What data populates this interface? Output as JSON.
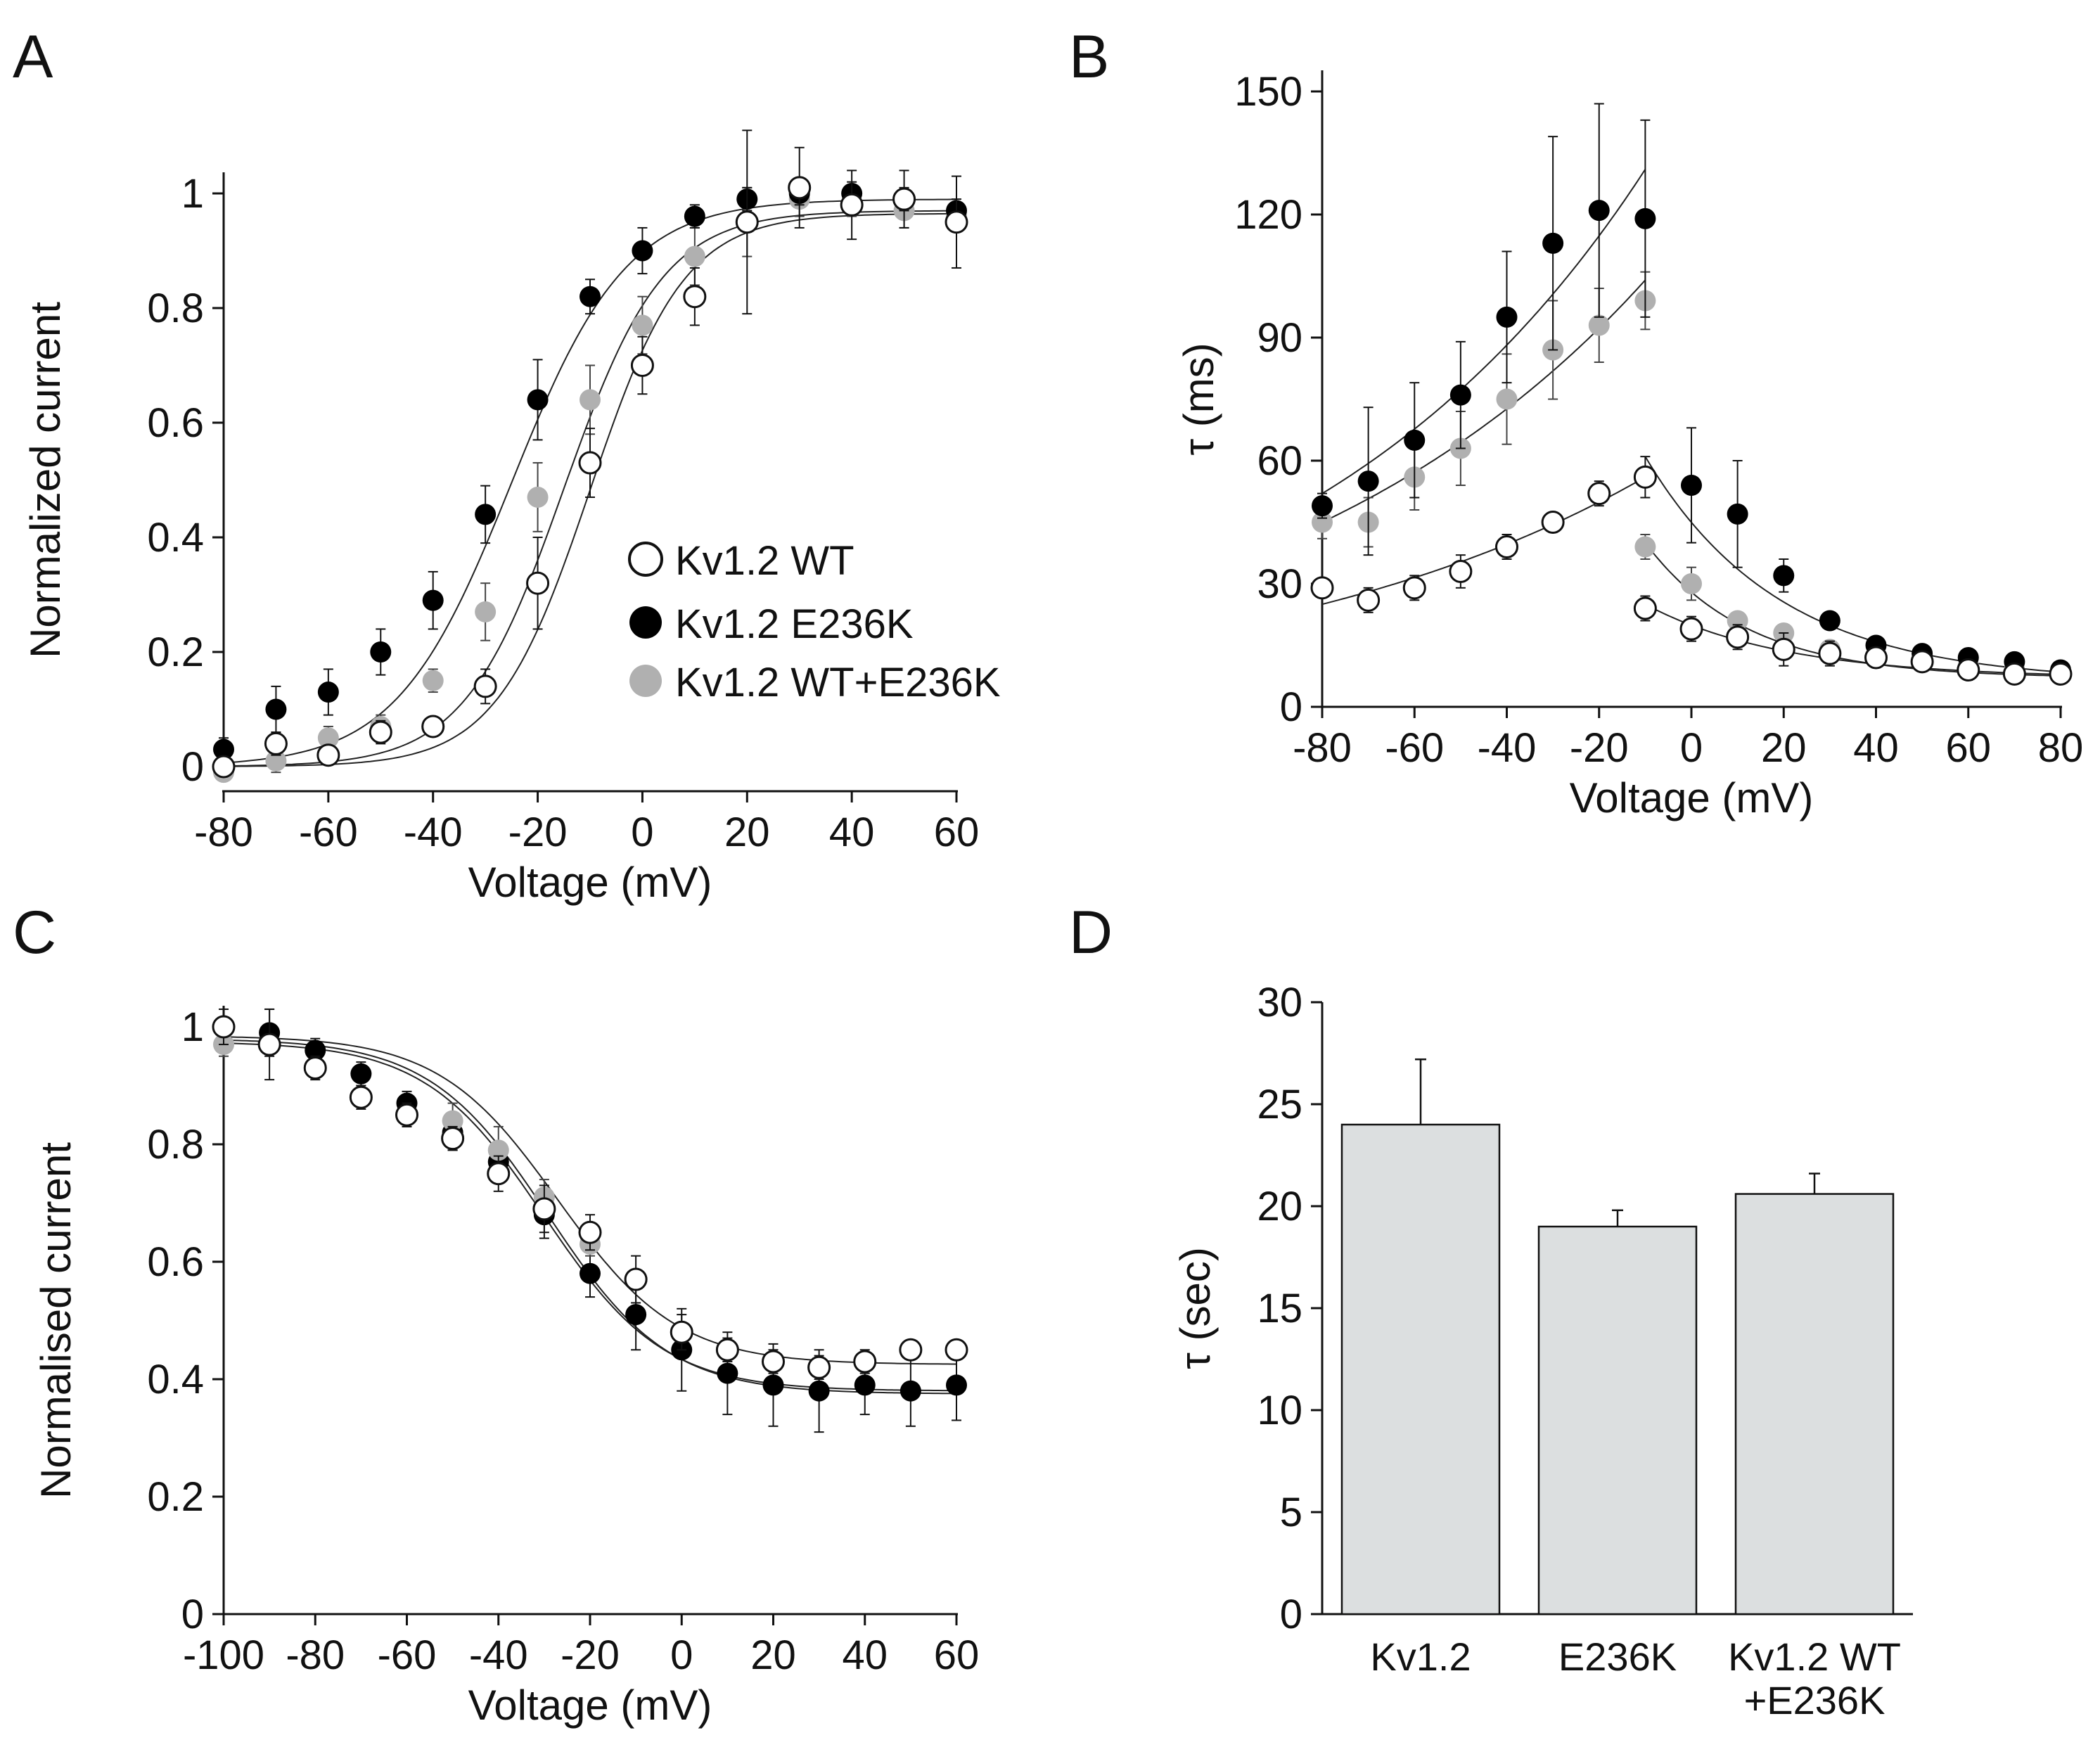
{
  "figure": {
    "panel_letters": [
      "A",
      "B",
      "C",
      "D"
    ]
  },
  "chart_data": [
    {
      "panel": "A",
      "type": "scatter",
      "xlabel": "Voltage (mV)",
      "ylabel": "Normalized current",
      "xlim": [
        -80,
        60
      ],
      "ylim": [
        0,
        1
      ],
      "xticks": [
        -80,
        -60,
        -40,
        -20,
        0,
        20,
        40,
        60
      ],
      "yticks": [
        0,
        0.2,
        0.4,
        0.6,
        0.8,
        1
      ],
      "ytick_labels": [
        "0",
        "0.2",
        "0.4",
        "0.6",
        "0.8",
        "1"
      ],
      "legend": [
        "Kv1.2 WT",
        "Kv1.2 E236K",
        "Kv1.2 WT+E236K"
      ],
      "legend_position": "middle-right",
      "series": [
        {
          "name": "Kv1.2 WT",
          "style": "open",
          "color": "#ffffff",
          "x": [
            -80,
            -70,
            -60,
            -50,
            -40,
            -30,
            -20,
            -10,
            0,
            10,
            20,
            30,
            40,
            50,
            60
          ],
          "values": [
            0.0,
            0.04,
            0.02,
            0.06,
            0.07,
            0.14,
            0.32,
            0.53,
            0.7,
            0.82,
            0.95,
            1.01,
            0.98,
            0.99,
            0.95
          ],
          "errors": [
            0.01,
            0.02,
            0.01,
            0.02,
            0.01,
            0.03,
            0.08,
            0.06,
            0.05,
            0.05,
            0.16,
            0.07,
            0.06,
            0.05,
            0.08
          ],
          "fit": {
            "vhalf": -10.0,
            "k": 9.0,
            "max": 0.965
          }
        },
        {
          "name": "Kv1.2 E236K",
          "style": "filled",
          "color": "#000000",
          "x": [
            -80,
            -70,
            -60,
            -50,
            -40,
            -30,
            -20,
            -10,
            0,
            10,
            20,
            30,
            40,
            50,
            60
          ],
          "values": [
            0.03,
            0.1,
            0.13,
            0.2,
            0.29,
            0.44,
            0.64,
            0.82,
            0.9,
            0.96,
            0.99,
            1.0,
            1.0,
            0.99,
            0.97
          ],
          "errors": [
            0.02,
            0.04,
            0.04,
            0.04,
            0.05,
            0.05,
            0.07,
            0.03,
            0.04,
            0.02,
            0.02,
            0.02,
            0.02,
            0.02,
            0.02
          ],
          "fit": {
            "vhalf": -25.0,
            "k": 11.0,
            "max": 0.99
          }
        },
        {
          "name": "Kv1.2 WT+E236K",
          "style": "filled",
          "color": "#b0b0b0",
          "x": [
            -80,
            -70,
            -60,
            -50,
            -40,
            -30,
            -20,
            -10,
            0,
            10,
            20,
            30,
            40,
            50,
            60
          ],
          "values": [
            -0.01,
            0.01,
            0.05,
            0.07,
            0.15,
            0.27,
            0.47,
            0.64,
            0.77,
            0.89,
            0.95,
            0.99,
            0.98,
            0.97,
            0.96
          ],
          "errors": [
            0.01,
            0.02,
            0.02,
            0.02,
            0.02,
            0.05,
            0.06,
            0.06,
            0.05,
            0.05,
            0.06,
            0.03,
            0.02,
            0.03,
            0.02
          ],
          "fit": {
            "vhalf": -15.0,
            "k": 9.5,
            "max": 0.97
          }
        }
      ]
    },
    {
      "panel": "B",
      "type": "scatter",
      "xlabel": "Voltage (mV)",
      "ylabel": "τ (ms)",
      "xlim": [
        -80,
        80
      ],
      "ylim": [
        0,
        150
      ],
      "xticks": [
        -80,
        -60,
        -40,
        -20,
        0,
        20,
        40,
        60,
        80
      ],
      "yticks": [
        0,
        30,
        60,
        90,
        120,
        150
      ],
      "series": [
        {
          "name": "Kv1.2 WT",
          "style": "open",
          "color": "#ffffff",
          "x": [
            -80,
            -70,
            -60,
            -50,
            -40,
            -30,
            -20,
            -10,
            -10,
            0,
            10,
            20,
            30,
            40,
            50,
            60,
            70,
            80
          ],
          "values": [
            29,
            26,
            29,
            33,
            39,
            45,
            52,
            56,
            24,
            19,
            17,
            14,
            13,
            12,
            11,
            9,
            8,
            8
          ],
          "errors": [
            2,
            3,
            3,
            4,
            3,
            2,
            3,
            5,
            3,
            3,
            3,
            4,
            3,
            2,
            2,
            1,
            1,
            1
          ]
        },
        {
          "name": "Kv1.2 E236K",
          "style": "filled",
          "color": "#000000",
          "x": [
            -80,
            -70,
            -60,
            -50,
            -40,
            -30,
            -20,
            -10,
            0,
            10,
            20,
            30,
            40,
            50,
            60,
            70,
            80
          ],
          "values": [
            49,
            55,
            65,
            76,
            95,
            113,
            121,
            119,
            54,
            47,
            32,
            21,
            15,
            13,
            12,
            11,
            9
          ],
          "errors": [
            3,
            18,
            14,
            13,
            16,
            26,
            26,
            24,
            14,
            13,
            4,
            2,
            2,
            2,
            2,
            1,
            1
          ]
        },
        {
          "name": "Kv1.2 WT+E236K",
          "style": "filled",
          "color": "#b0b0b0",
          "x": [
            -80,
            -70,
            -60,
            -50,
            -40,
            -30,
            -20,
            -10,
            -10,
            0,
            10,
            20,
            30,
            40,
            50,
            60,
            70,
            80
          ],
          "values": [
            45,
            45,
            56,
            63,
            75,
            87,
            93,
            99,
            39,
            30,
            21,
            18,
            14,
            12,
            11,
            10,
            9,
            8
          ],
          "errors": [
            4,
            6,
            8,
            9,
            11,
            12,
            9,
            7,
            3,
            4,
            2,
            2,
            2,
            2,
            2,
            1,
            1,
            1
          ]
        }
      ],
      "fits": [
        {
          "series": "Kv1.2 E236K",
          "from": -80,
          "to": -10,
          "at_from": 52,
          "at_to": 131
        },
        {
          "series": "Kv1.2 WT+E236K",
          "from": -80,
          "to": -10,
          "at_from": 45,
          "at_to": 104
        },
        {
          "series": "Kv1.2 WT",
          "from": -80,
          "to": -10,
          "at_from": 25,
          "at_to": 56
        },
        {
          "series": "Kv1.2 E236K",
          "from": -10,
          "to": 80,
          "at_from": 61,
          "at_to": 6,
          "tau_mV": 29
        },
        {
          "series": "Kv1.2 WT+E236K",
          "from": -10,
          "to": 80,
          "at_from": 40,
          "at_to": 7,
          "tau_mV": 22
        },
        {
          "series": "Kv1.2 WT",
          "from": -10,
          "to": 80,
          "at_from": 25,
          "at_to": 7,
          "tau_mV": 30
        }
      ]
    },
    {
      "panel": "C",
      "type": "scatter",
      "xlabel": "Voltage (mV)",
      "ylabel": "Normalised current",
      "xlim": [
        -100,
        60
      ],
      "ylim": [
        0,
        1
      ],
      "xticks": [
        -100,
        -80,
        -60,
        -40,
        -20,
        0,
        20,
        40,
        60
      ],
      "yticks": [
        0,
        0.2,
        0.4,
        0.6,
        0.8,
        1
      ],
      "ytick_labels": [
        "0",
        "0.2",
        "0.4",
        "0.6",
        "0.8",
        "1"
      ],
      "series": [
        {
          "name": "Kv1.2 E236K",
          "style": "filled",
          "color": "#000000",
          "x": [
            -90,
            -80,
            -70,
            -60,
            -50,
            -40,
            -30,
            -20,
            -10,
            0,
            10,
            20,
            30,
            40,
            50,
            60
          ],
          "values": [
            0.99,
            0.96,
            0.92,
            0.87,
            0.82,
            0.77,
            0.68,
            0.58,
            0.51,
            0.45,
            0.41,
            0.39,
            0.38,
            0.39,
            0.38,
            0.39
          ],
          "errors": [
            0.04,
            0.02,
            0.02,
            0.02,
            0.03,
            0.03,
            0.04,
            0.04,
            0.06,
            0.07,
            0.07,
            0.07,
            0.07,
            0.05,
            0.06,
            0.06
          ],
          "fit": {
            "vhalf": -29.0,
            "k": 13.0,
            "top": 0.98,
            "bottom": 0.375
          }
        },
        {
          "name": "Kv1.2 WT+E236K",
          "style": "filled",
          "color": "#b0b0b0",
          "x": [
            -100,
            -50,
            -40,
            -30,
            -20
          ],
          "values": [
            0.97,
            0.84,
            0.79,
            0.71,
            0.63
          ],
          "errors": [
            0.02,
            0.03,
            0.04,
            0.03,
            0.02
          ],
          "fit": {
            "vhalf": -30.0,
            "k": 13.0,
            "top": 0.975,
            "bottom": 0.38
          }
        },
        {
          "name": "Kv1.2 WT",
          "style": "open",
          "color": "#ffffff",
          "x": [
            -100,
            -90,
            -80,
            -70,
            -60,
            -50,
            -40,
            -30,
            -20,
            -10,
            0,
            10,
            20,
            30,
            40,
            50,
            60
          ],
          "values": [
            1.0,
            0.97,
            0.93,
            0.88,
            0.85,
            0.81,
            0.75,
            0.69,
            0.65,
            0.57,
            0.48,
            0.45,
            0.43,
            0.42,
            0.43,
            0.45,
            0.45
          ],
          "errors": [
            0.03,
            0.06,
            0.02,
            0.02,
            0.02,
            0.02,
            0.03,
            0.04,
            0.03,
            0.04,
            0.03,
            0.02,
            0.02,
            0.02,
            0.02,
            0.01,
            0.01
          ],
          "fit": {
            "vhalf": -27.0,
            "k": 13.0,
            "top": 0.985,
            "bottom": 0.425
          }
        }
      ]
    },
    {
      "panel": "D",
      "type": "bar",
      "ylabel": "τ (sec)",
      "ylim": [
        0,
        30
      ],
      "yticks": [
        0,
        5,
        10,
        15,
        20,
        25,
        30
      ],
      "categories": [
        "Kv1.2",
        "E236K",
        "Kv1.2 WT +E236K"
      ],
      "category_lines": [
        [
          "Kv1.2"
        ],
        [
          "E236K"
        ],
        [
          "Kv1.2 WT",
          "+E236K"
        ]
      ],
      "values": [
        24.0,
        19.0,
        20.6
      ],
      "errors": [
        3.2,
        0.8,
        1.0
      ],
      "bar_color": "#dcdfe0"
    }
  ]
}
